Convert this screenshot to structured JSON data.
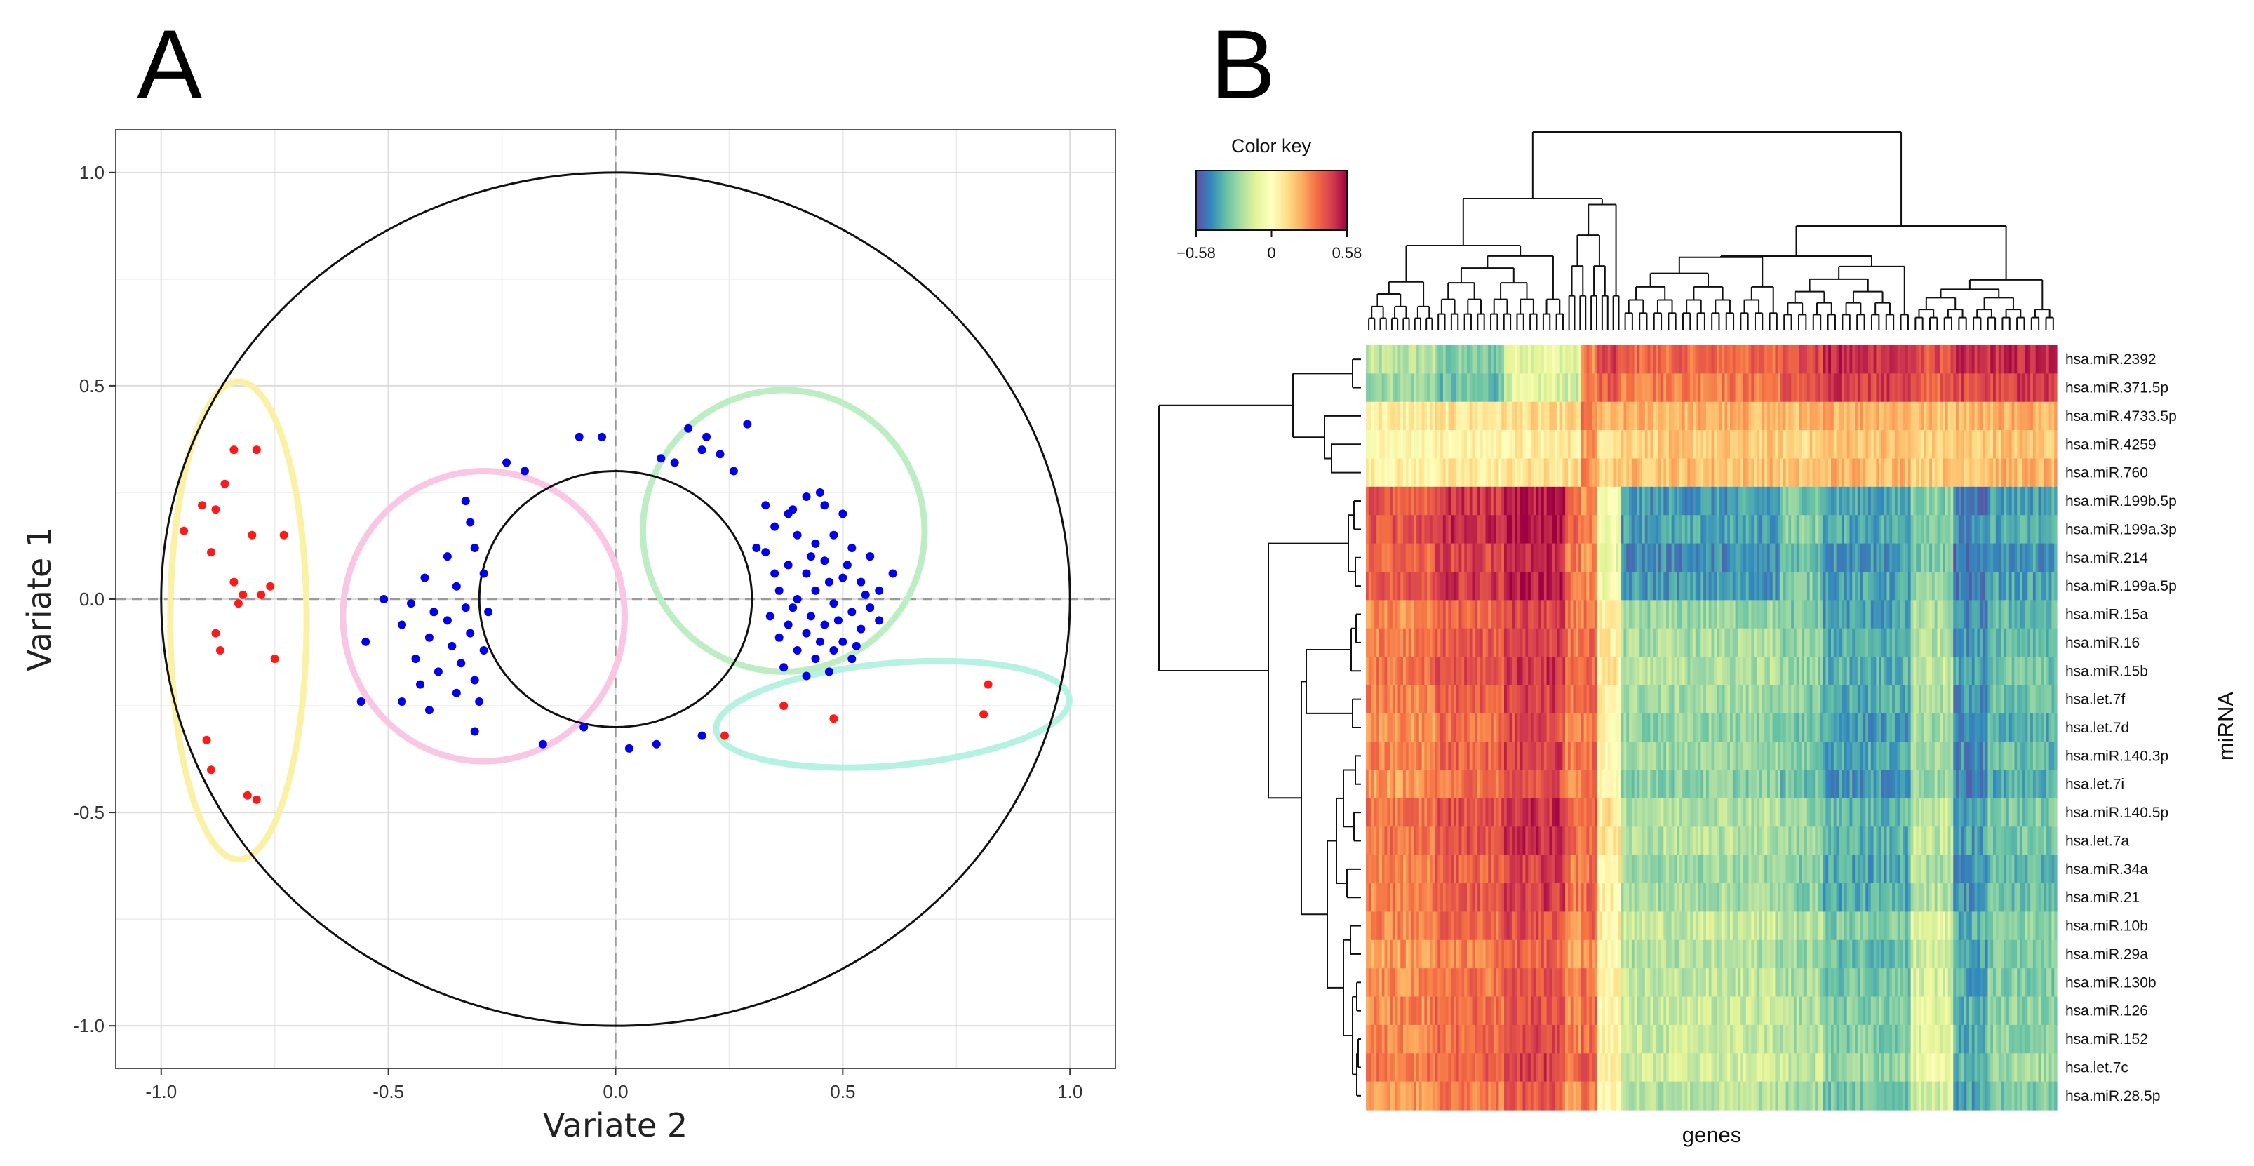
{
  "panels": {
    "a_label": "A",
    "b_label": "B"
  },
  "chart_data": [
    {
      "type": "scatter",
      "title": "",
      "xlabel": "Variate 2",
      "ylabel": "Variate 1",
      "xlim": [
        -1.1,
        1.1
      ],
      "ylim": [
        -1.1,
        1.1
      ],
      "xticks": [
        -1.0,
        -0.5,
        0.0,
        0.5,
        1.0
      ],
      "yticks": [
        -1.0,
        -0.5,
        0.0,
        0.5,
        1.0
      ],
      "xtick_labels": [
        "-1.0",
        "-0.5",
        "0.0",
        "0.5",
        "1.0"
      ],
      "ytick_labels": [
        "-1.0",
        "-0.5",
        "0.0",
        "0.5",
        "1.0"
      ],
      "grid": true,
      "reference_circles": [
        {
          "name": "outer-circle",
          "r": 1.0
        },
        {
          "name": "inner-circle",
          "r": 0.3
        }
      ],
      "ellipses": [
        {
          "name": "yellow-ellipse",
          "cx": -0.83,
          "cy": -0.05,
          "rx": 0.15,
          "ry": 0.56,
          "angle": 0,
          "color": "#fbf1a5"
        },
        {
          "name": "pink-ellipse",
          "cx": -0.29,
          "cy": -0.04,
          "rx": 0.31,
          "ry": 0.34,
          "angle": 0,
          "color": "#f9c6e4"
        },
        {
          "name": "green-ellipse",
          "cx": 0.37,
          "cy": 0.16,
          "rx": 0.31,
          "ry": 0.33,
          "angle": 0,
          "color": "#bdeec3"
        },
        {
          "name": "cyan-ellipse",
          "cx": 0.61,
          "cy": -0.27,
          "rx": 0.39,
          "ry": 0.12,
          "angle": 5,
          "color": "#b6f2e2"
        }
      ],
      "series": [
        {
          "name": "red points",
          "color": "#ff1a1a",
          "points": [
            [
              -0.84,
              0.35
            ],
            [
              -0.79,
              0.35
            ],
            [
              -0.86,
              0.27
            ],
            [
              -0.91,
              0.22
            ],
            [
              -0.88,
              0.21
            ],
            [
              -0.95,
              0.16
            ],
            [
              -0.8,
              0.15
            ],
            [
              -0.73,
              0.15
            ],
            [
              -0.89,
              0.11
            ],
            [
              -0.84,
              0.04
            ],
            [
              -0.76,
              0.03
            ],
            [
              -0.82,
              0.01
            ],
            [
              -0.78,
              0.01
            ],
            [
              -0.83,
              -0.01
            ],
            [
              -0.88,
              -0.08
            ],
            [
              -0.87,
              -0.12
            ],
            [
              -0.75,
              -0.14
            ],
            [
              -0.9,
              -0.33
            ],
            [
              -0.89,
              -0.4
            ],
            [
              -0.81,
              -0.46
            ],
            [
              -0.79,
              -0.47
            ],
            [
              0.37,
              -0.25
            ],
            [
              0.48,
              -0.28
            ],
            [
              0.24,
              -0.32
            ],
            [
              0.82,
              -0.2
            ],
            [
              0.81,
              -0.27
            ]
          ]
        },
        {
          "name": "blue points",
          "color": "#0000ee",
          "points": [
            [
              -0.03,
              0.38
            ],
            [
              -0.08,
              0.38
            ],
            [
              -0.24,
              0.32
            ],
            [
              -0.2,
              0.3
            ],
            [
              -0.33,
              0.23
            ],
            [
              -0.32,
              0.18
            ],
            [
              -0.31,
              0.12
            ],
            [
              -0.37,
              0.1
            ],
            [
              -0.42,
              0.05
            ],
            [
              -0.29,
              0.06
            ],
            [
              -0.35,
              0.03
            ],
            [
              -0.45,
              -0.01
            ],
            [
              -0.51,
              0.0
            ],
            [
              -0.33,
              -0.02
            ],
            [
              -0.4,
              -0.03
            ],
            [
              -0.28,
              -0.03
            ],
            [
              -0.37,
              -0.05
            ],
            [
              -0.47,
              -0.06
            ],
            [
              -0.32,
              -0.08
            ],
            [
              -0.41,
              -0.09
            ],
            [
              -0.36,
              -0.11
            ],
            [
              -0.55,
              -0.1
            ],
            [
              -0.29,
              -0.12
            ],
            [
              -0.44,
              -0.14
            ],
            [
              -0.34,
              -0.15
            ],
            [
              -0.39,
              -0.17
            ],
            [
              -0.31,
              -0.19
            ],
            [
              -0.43,
              -0.2
            ],
            [
              -0.35,
              -0.22
            ],
            [
              -0.3,
              -0.24
            ],
            [
              -0.56,
              -0.24
            ],
            [
              -0.47,
              -0.24
            ],
            [
              -0.41,
              -0.26
            ],
            [
              -0.31,
              -0.31
            ],
            [
              -0.16,
              -0.34
            ],
            [
              -0.07,
              -0.3
            ],
            [
              0.03,
              -0.35
            ],
            [
              0.09,
              -0.34
            ],
            [
              0.19,
              -0.32
            ],
            [
              0.1,
              0.33
            ],
            [
              0.13,
              0.32
            ],
            [
              0.16,
              0.4
            ],
            [
              0.2,
              0.38
            ],
            [
              0.19,
              0.35
            ],
            [
              0.23,
              0.34
            ],
            [
              0.29,
              0.41
            ],
            [
              0.26,
              0.3
            ],
            [
              0.33,
              0.22
            ],
            [
              0.38,
              0.2
            ],
            [
              0.42,
              0.24
            ],
            [
              0.46,
              0.22
            ],
            [
              0.5,
              0.2
            ],
            [
              0.35,
              0.17
            ],
            [
              0.4,
              0.15
            ],
            [
              0.44,
              0.13
            ],
            [
              0.48,
              0.15
            ],
            [
              0.52,
              0.12
            ],
            [
              0.56,
              0.1
            ],
            [
              0.33,
              0.11
            ],
            [
              0.38,
              0.08
            ],
            [
              0.42,
              0.06
            ],
            [
              0.46,
              0.09
            ],
            [
              0.5,
              0.05
            ],
            [
              0.54,
              0.04
            ],
            [
              0.58,
              0.02
            ],
            [
              0.61,
              0.06
            ],
            [
              0.36,
              0.02
            ],
            [
              0.4,
              0.0
            ],
            [
              0.44,
              0.02
            ],
            [
              0.48,
              -0.01
            ],
            [
              0.52,
              -0.03
            ],
            [
              0.56,
              -0.02
            ],
            [
              0.34,
              -0.04
            ],
            [
              0.38,
              -0.06
            ],
            [
              0.42,
              -0.08
            ],
            [
              0.46,
              -0.06
            ],
            [
              0.5,
              -0.1
            ],
            [
              0.54,
              -0.07
            ],
            [
              0.58,
              -0.05
            ],
            [
              0.4,
              -0.12
            ],
            [
              0.44,
              -0.14
            ],
            [
              0.48,
              -0.12
            ],
            [
              0.37,
              -0.16
            ],
            [
              0.42,
              -0.18
            ],
            [
              0.47,
              -0.17
            ],
            [
              0.52,
              -0.14
            ],
            [
              0.45,
              0.25
            ],
            [
              0.39,
              0.21
            ],
            [
              0.31,
              0.12
            ],
            [
              0.35,
              0.06
            ],
            [
              0.43,
              0.1
            ],
            [
              0.47,
              0.04
            ],
            [
              0.51,
              0.08
            ],
            [
              0.55,
              0.01
            ],
            [
              0.39,
              -0.02
            ],
            [
              0.43,
              -0.04
            ],
            [
              0.49,
              -0.05
            ],
            [
              0.36,
              -0.09
            ],
            [
              0.45,
              -0.1
            ],
            [
              0.53,
              -0.11
            ]
          ]
        }
      ]
    },
    {
      "type": "heatmap",
      "title": "",
      "xlabel": "genes",
      "ylabel": "miRNA",
      "color_key": {
        "title": "Color key",
        "min": -0.58,
        "max": 0.58,
        "tick_labels": [
          "−0.58",
          "0",
          "0.58"
        ],
        "colors": [
          "#5e4fa2",
          "#3288bd",
          "#66c2a5",
          "#abdda4",
          "#e6f598",
          "#ffffbf",
          "#fee08b",
          "#fdae61",
          "#f46d43",
          "#d53e4f",
          "#9e0142"
        ]
      },
      "rows": [
        "hsa.miR.2392",
        "hsa.miR.371.5p",
        "hsa.miR.4733.5p",
        "hsa.miR.4259",
        "hsa.miR.760",
        "hsa.miR.199b.5p",
        "hsa.miR.199a.3p",
        "hsa.miR.214",
        "hsa.miR.199a.5p",
        "hsa.miR.15a",
        "hsa.miR.16",
        "hsa.miR.15b",
        "hsa.let.7f",
        "hsa.let.7d",
        "hsa.miR.140.3p",
        "hsa.let.7i",
        "hsa.miR.140.5p",
        "hsa.let.7a",
        "hsa.miR.34a",
        "hsa.miR.21",
        "hsa.miR.10b",
        "hsa.miR.29a",
        "hsa.miR.130b",
        "hsa.miR.126",
        "hsa.miR.152",
        "hsa.let.7c",
        "hsa.miR.28.5p"
      ],
      "column_segments": [
        "block1",
        "block2",
        "block3",
        "block4",
        "block5",
        "block6",
        "block7",
        "block8",
        "block9",
        "block10",
        "block11",
        "block12"
      ],
      "row_groups": [
        {
          "name": "group-top",
          "rows": [
            0,
            1
          ],
          "values": [
            -0.22,
            -0.32,
            -0.1,
            -0.14,
            0.3,
            0.42,
            0.35,
            0.42,
            0.48,
            0.4,
            0.46,
            0.48
          ]
        },
        {
          "name": "group-light",
          "rows": [
            2,
            3,
            4
          ],
          "values": [
            0.06,
            0.08,
            0.1,
            0.12,
            0.3,
            0.16,
            0.2,
            0.18,
            0.22,
            0.18,
            0.2,
            0.22
          ]
        },
        {
          "name": "group-red",
          "rows": [
            5,
            6,
            7,
            8
          ],
          "values": [
            0.4,
            0.48,
            0.55,
            0.35,
            0.3,
            -0.05,
            -0.42,
            -0.3,
            -0.4,
            -0.28,
            -0.48,
            -0.4
          ]
        },
        {
          "name": "group-orange",
          "rows": [
            9,
            10,
            11,
            12,
            13,
            14,
            15,
            16,
            17,
            18,
            19
          ],
          "values": [
            0.3,
            0.38,
            0.45,
            0.32,
            0.35,
            0.05,
            -0.25,
            -0.3,
            -0.4,
            -0.22,
            -0.45,
            -0.35
          ]
        },
        {
          "name": "group-bottom",
          "rows": [
            20,
            21,
            22,
            23,
            24,
            25,
            26
          ],
          "values": [
            0.3,
            0.36,
            0.42,
            0.3,
            0.36,
            0.05,
            -0.18,
            -0.22,
            -0.3,
            -0.12,
            -0.38,
            -0.28
          ]
        }
      ]
    }
  ]
}
